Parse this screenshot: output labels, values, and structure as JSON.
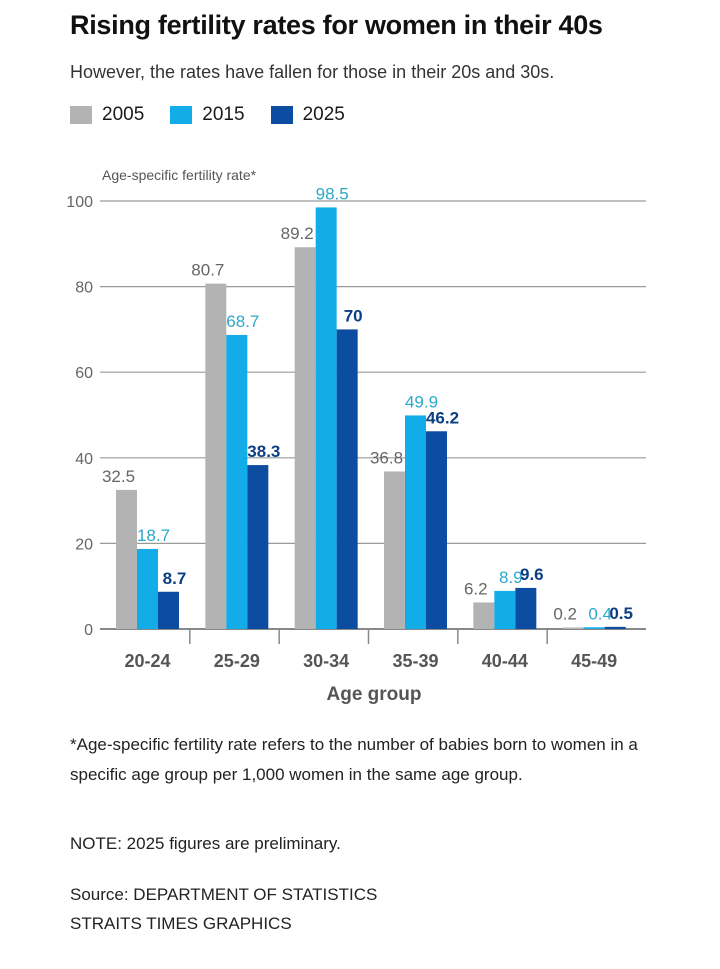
{
  "header": {
    "title": "Rising fertility rates for women in their 40s",
    "subtitle": "However, the rates have fallen for those in their 20s and 30s."
  },
  "colors": {
    "2005": "#B3B3B3",
    "2015": "#12ACE8",
    "2025": "#0C4DA2",
    "label_2005": "#666666",
    "label_2015": "#2BA9C9",
    "label_2025": "#0B3F82",
    "grid": "#9a9a9a"
  },
  "chart_data": {
    "type": "bar",
    "title": "Rising fertility rates for women in their 40s",
    "ylabel": "Age-specific fertility rate*",
    "xlabel": "Age group",
    "ylim": [
      0,
      100
    ],
    "yticks": [
      0,
      20,
      40,
      60,
      80,
      100
    ],
    "grid": true,
    "legend": "top-left",
    "categories": [
      "20-24",
      "25-29",
      "30-34",
      "35-39",
      "40-44",
      "45-49"
    ],
    "series": [
      {
        "name": "2005",
        "values": [
          32.5,
          80.7,
          89.2,
          36.8,
          6.2,
          0.2
        ],
        "labels": [
          "32.5",
          "80.7",
          "89.2",
          "36.8",
          "6.2",
          "0.2"
        ]
      },
      {
        "name": "2015",
        "values": [
          18.7,
          68.7,
          98.5,
          49.9,
          8.9,
          0.4
        ],
        "labels": [
          "18.7",
          "68.7",
          "98.5",
          "49.9",
          "8.9",
          "0.4"
        ]
      },
      {
        "name": "2025",
        "values": [
          8.7,
          38.3,
          70,
          46.2,
          9.6,
          0.5
        ],
        "labels": [
          "8.7",
          "38.3",
          "70",
          "46.2",
          "9.6",
          "0.5"
        ]
      }
    ]
  },
  "footer": {
    "footnote": "*Age-specific fertility rate refers to the number of babies born to women in a specific age group per 1,000 women in the same age group.",
    "note": "NOTE: 2025 figures are preliminary.",
    "source_line1": "Source: DEPARTMENT OF STATISTICS",
    "source_line2": "STRAITS TIMES GRAPHICS"
  }
}
